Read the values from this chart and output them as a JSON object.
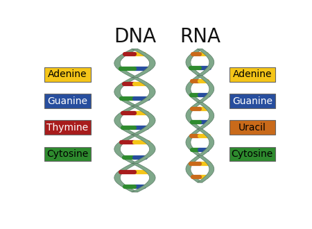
{
  "title_dna": "DNA",
  "title_rna": "RNA",
  "background_color": "#ffffff",
  "left_labels": [
    {
      "text": "Adenine",
      "color": "#F5C518",
      "text_color": "#000000"
    },
    {
      "text": "Guanine",
      "color": "#274E9E",
      "text_color": "#ffffff"
    },
    {
      "text": "Thymine",
      "color": "#A81C1C",
      "text_color": "#ffffff"
    },
    {
      "text": "Cytosine",
      "color": "#2E8B2E",
      "text_color": "#000000"
    }
  ],
  "right_labels": [
    {
      "text": "Adenine",
      "color": "#F5C518",
      "text_color": "#000000"
    },
    {
      "text": "Guanine",
      "color": "#274E9E",
      "text_color": "#ffffff"
    },
    {
      "text": "Uracil",
      "color": "#C96A1A",
      "text_color": "#000000"
    },
    {
      "text": "Cytosine",
      "color": "#2E8B2E",
      "text_color": "#000000"
    }
  ],
  "helix_color": "#7FA88A",
  "helix_edge_color": "#5A7A65",
  "base_colors": {
    "adenine": "#F5C518",
    "guanine": "#274E9E",
    "thymine": "#A81C1C",
    "cytosine": "#2E8B2E",
    "uracil": "#C96A1A"
  },
  "title_fontsize": 20,
  "label_fontsize": 10,
  "fig_width": 4.5,
  "fig_height": 3.3,
  "dpi": 100
}
